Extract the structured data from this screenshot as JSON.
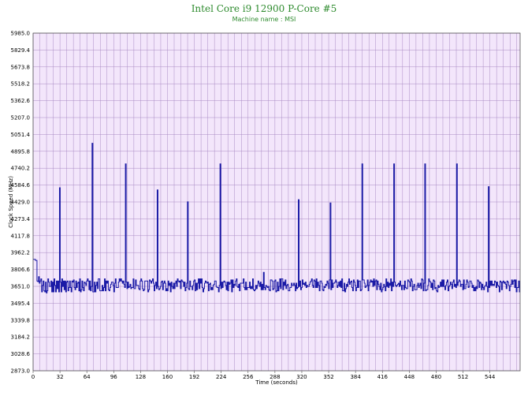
{
  "chart_data": {
    "type": "line",
    "title": "Intel Core i9 12900 P-Core #5",
    "subtitle": "Machine name : MSI",
    "xlabel": "Time (seconds)",
    "ylabel": "Clock Speed (MHz)",
    "xlim": [
      0,
      580
    ],
    "ylim": [
      2873.0,
      5985.0
    ],
    "x_ticks": [
      "0",
      "32",
      "64",
      "96",
      "128",
      "160",
      "192",
      "224",
      "256",
      "288",
      "320",
      "352",
      "384",
      "416",
      "448",
      "480",
      "512",
      "544"
    ],
    "y_ticks": [
      "2873.0",
      "3028.6",
      "3184.2",
      "3339.8",
      "3495.4",
      "3651.0",
      "3806.6",
      "3962.2",
      "4117.8",
      "4273.4",
      "4429.0",
      "4584.6",
      "4740.2",
      "4895.8",
      "5051.4",
      "5207.0",
      "5362.6",
      "5518.2",
      "5673.8",
      "5829.4",
      "5985.0"
    ],
    "grid": true,
    "colors": {
      "plot_background": "#f3e6fb",
      "grid": "#a98ac4",
      "line": "#1a1aa6",
      "title": "#2e8b2e"
    },
    "series": [
      {
        "values": [
          3900,
          3900,
          3900,
          3890,
          3890,
          3700,
          3695,
          3740,
          3680,
          3700,
          3720,
          3600,
          3660,
          3700,
          3610,
          3600,
          3690,
          3590,
          3610,
          3720,
          3690,
          3650,
          3650,
          3700,
          3600,
          3690,
          3600,
          3720,
          3660,
          3600,
          3700,
          3630,
          3700,
          3600,
          4560,
          3690,
          3600,
          3720,
          3650,
          3700,
          3620,
          3700,
          3600,
          3690,
          3700,
          3610,
          3640,
          3700,
          3640,
          3600,
          3700,
          3690,
          3710,
          3640,
          3620,
          3700,
          3640,
          3680,
          3690,
          3610,
          3720,
          3600,
          3620,
          3700,
          3640,
          3610,
          3690,
          3680,
          3660,
          3700,
          3720,
          3700,
          3620,
          3700,
          3610,
          3650,
          4970,
          3600,
          3600,
          3690,
          3600,
          3660,
          3690,
          3630,
          3720,
          3720,
          3610,
          3610,
          3610,
          3660,
          3610,
          3640,
          3720,
          3610,
          3700,
          3680,
          3700,
          3620,
          3610,
          3640,
          3670,
          3690,
          3690,
          3660,
          3600,
          3680,
          3720,
          3640,
          3640,
          3640,
          3690,
          3720,
          3700,
          3720,
          3700,
          3680,
          3700,
          3670,
          3640,
          4780,
          3690,
          3630,
          3690,
          3640,
          3650,
          3670,
          3630,
          3640,
          3640,
          3720,
          3630,
          3630,
          3710,
          3660,
          3660,
          3660,
          3630,
          3620,
          3700,
          3720,
          3700,
          3630,
          3610,
          3620,
          3700,
          3700,
          3700,
          3700,
          3600,
          3620,
          3710,
          3700,
          3680,
          3700,
          3720,
          3680,
          3610,
          3660,
          3690,
          3630,
          4540,
          3650,
          3620,
          3630,
          3650,
          3690,
          3700,
          3620,
          3680,
          3700,
          3680,
          3610,
          3630,
          3610,
          3700,
          3660,
          3680,
          3600,
          3690,
          3650,
          3630,
          3680,
          3630,
          3680,
          3700,
          3650,
          3720,
          3700,
          3690,
          3700,
          3630,
          3710,
          3700,
          3690,
          3650,
          3690,
          3610,
          3640,
          3680,
          4430,
          3630,
          3620,
          3700,
          3650,
          3650,
          3620,
          3660,
          3700,
          3710,
          3610,
          3680,
          3620,
          3680,
          3720,
          3630,
          3720,
          3680,
          3720,
          3640,
          3600,
          3630,
          3680,
          3700,
          3690,
          3680,
          3690,
          3610,
          3670,
          3680,
          3620,
          3640,
          3620,
          3660,
          3670,
          3700,
          3700,
          3650,
          3640,
          3640,
          3600,
          3660,
          4780,
          3630,
          3690,
          3640,
          3690,
          3700,
          3690,
          3660,
          3620,
          3690,
          3610,
          3690,
          3670,
          3680,
          3710,
          3600,
          3710,
          3640,
          3670,
          3660,
          3700,
          3720,
          3650,
          3640,
          3670,
          3610,
          3680,
          3680,
          3680,
          3680,
          3720,
          3640,
          3620,
          3690,
          3620,
          3640,
          3640,
          3640,
          3690,
          3630,
          3650,
          3630,
          3720,
          3620,
          3610,
          3620,
          3660,
          3630,
          3660,
          3700,
          3680,
          3650,
          3690,
          3620,
          3670,
          3620,
          3780,
          3640,
          3620,
          3660,
          3650,
          3640,
          3650,
          3620,
          3610,
          3710,
          3710,
          3700,
          3620,
          3630,
          3700,
          3710,
          3600,
          3610,
          3690,
          3610,
          3650,
          3720,
          3630,
          3720,
          3720,
          3620,
          3690,
          3660,
          3710,
          3630,
          3660,
          3670,
          3610,
          3610,
          3640,
          3640,
          3680,
          3660,
          3660,
          3680,
          3660,
          3610,
          3680,
          3630,
          3640,
          4450,
          3650,
          3700,
          3620,
          3640,
          3710,
          3670,
          3680,
          3660,
          3690,
          3640,
          3660,
          3650,
          3650,
          3670,
          3690,
          3700,
          3720,
          3660,
          3640,
          3710,
          3700,
          3640,
          3720,
          3640,
          3690,
          3660,
          3610,
          3700,
          3700,
          3680,
          3620,
          3610,
          3650,
          3640,
          3670,
          3660,
          3700,
          3680,
          3630,
          3710,
          4420,
          3620,
          3710,
          3640,
          3680,
          3680,
          3690,
          3710,
          3690,
          3640,
          3660,
          3690,
          3650,
          3700,
          3640,
          3720,
          3610,
          3610,
          3680,
          3600,
          3630,
          3670,
          3650,
          3690,
          3720,
          3670,
          3690,
          3700,
          3640,
          3610,
          3710,
          3690,
          3660,
          3610,
          3640,
          3710,
          3640,
          3700,
          3700,
          3610,
          3620,
          4780,
          3710,
          3710,
          3680,
          3640,
          3650,
          3660,
          3710,
          3610,
          3660,
          3690,
          3710,
          3690,
          3700,
          3650,
          3720,
          3660,
          3700,
          3710,
          3620,
          3700,
          3670,
          3650,
          3620,
          3680,
          3600,
          3620,
          3640,
          3670,
          3650,
          3610,
          3720,
          3650,
          3690,
          3640,
          3680,
          3660,
          3720,
          3610,
          3690,
          3650,
          4780,
          3690,
          3660,
          3650,
          3660,
          3670,
          3680,
          3650,
          3700,
          3660,
          3620,
          3660,
          3660,
          3620,
          3700,
          3640,
          3630,
          3630,
          3710,
          3700,
          3690,
          3650,
          3720,
          3700,
          3610,
          3650,
          3670,
          3620,
          3620,
          3620,
          3660,
          3680,
          3640,
          3660,
          3680,
          3630,
          3720,
          3710,
          3610,
          3680,
          4780,
          3610,
          3620,
          3620,
          3660,
          3720,
          3700,
          3690,
          3640,
          3680,
          3620,
          3710,
          3700,
          3630,
          3640,
          3610,
          3600,
          3660,
          3640,
          3650,
          3690,
          3650,
          3710,
          3650,
          3710,
          3650,
          3620,
          3660,
          3690,
          3710,
          3610,
          3650,
          3660,
          3690,
          3670,
          3630,
          3690,
          3710,
          3650,
          3670,
          3640,
          4780,
          3660,
          3690,
          3710,
          3700,
          3650,
          3670,
          3670,
          3620,
          3710,
          3630,
          3630,
          3670,
          3710,
          3690,
          3640,
          3650,
          3700,
          3700,
          3680,
          3640,
          3660,
          3610,
          3640,
          3610,
          3650,
          3630,
          3710,
          3700,
          3640,
          3690,
          3680,
          3620,
          3670,
          3640,
          3620,
          3650,
          3660,
          3690,
          3650,
          3600,
          4570,
          3640,
          3700,
          3660,
          3700,
          3660,
          3670,
          3660,
          3700,
          3690,
          3640,
          3690,
          3660,
          3650,
          3600,
          3700,
          3690,
          3620,
          3690,
          3700,
          3680,
          3690,
          3670,
          3630,
          3700,
          3690,
          3660,
          3610,
          3650,
          3670,
          3710,
          3670,
          3700,
          3710,
          3640,
          3710,
          3600,
          3640,
          3640,
          3700,
          3600
        ]
      }
    ]
  }
}
